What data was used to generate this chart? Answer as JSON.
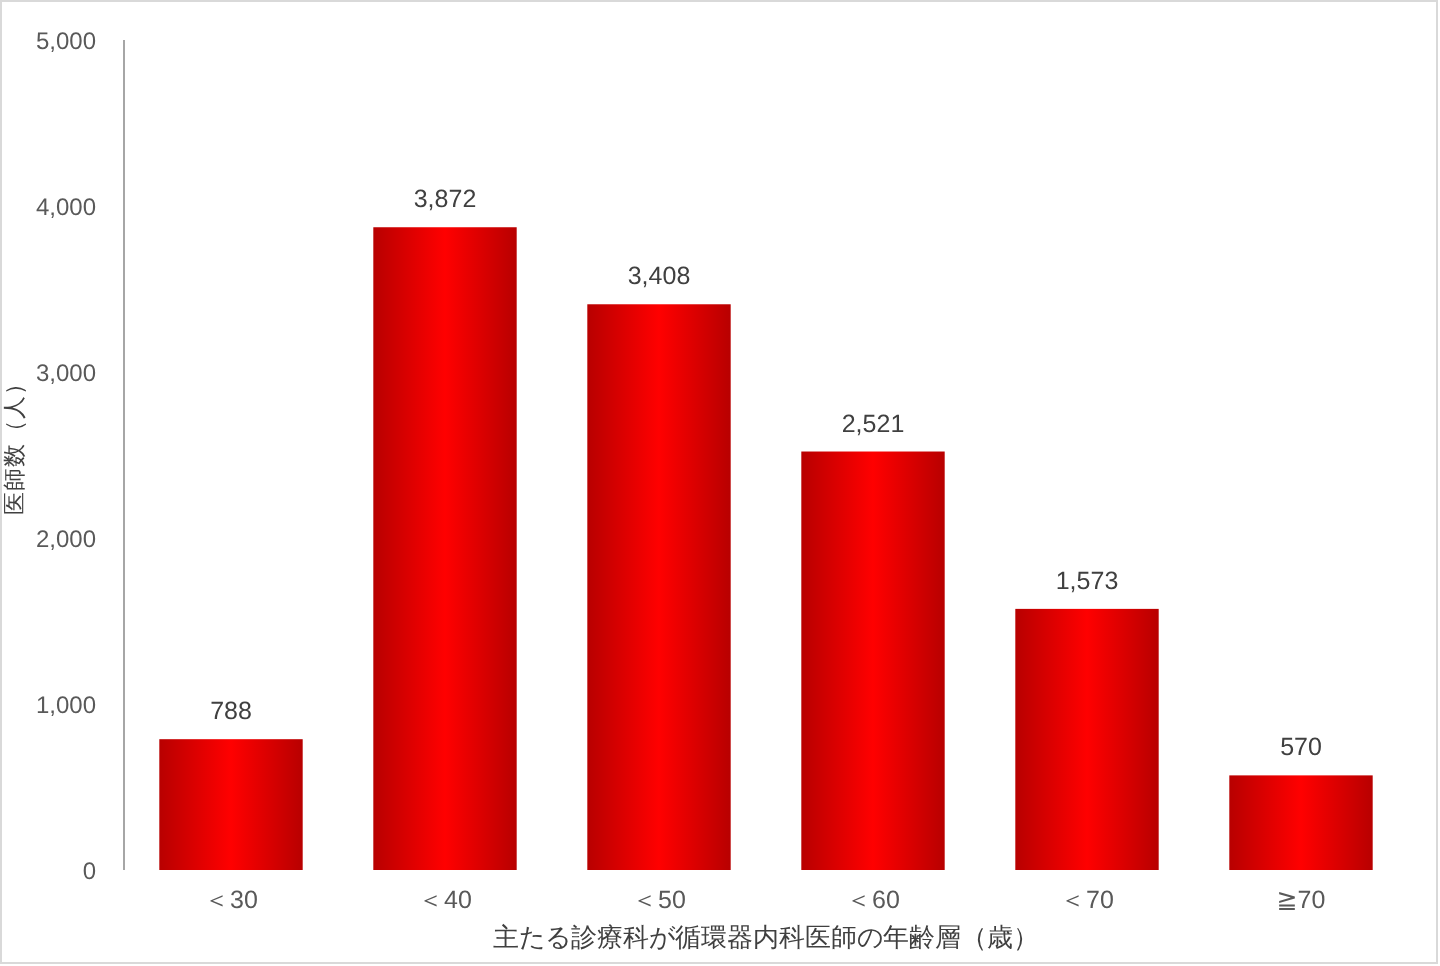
{
  "chart_data": {
    "type": "bar",
    "xlabel": "主たる診療科が循環器内科医師の年齢層（歳）",
    "ylabel": "医師数（人）",
    "categories": [
      "＜30",
      "＜40",
      "＜50",
      "＜60",
      "＜70",
      "≧70"
    ],
    "values": [
      788,
      3872,
      3408,
      2521,
      1573,
      570
    ],
    "value_labels": [
      "788",
      "3,872",
      "3,408",
      "2,521",
      "1,573",
      "570"
    ],
    "color": "#ff0000",
    "ylim": [
      0,
      5000
    ],
    "yticks": [
      0,
      {
        "value": 1000,
        "label": "1,000"
      },
      {
        "value": 2000,
        "label": "2,000"
      },
      {
        "value": 3000,
        "label": "3,000"
      },
      {
        "value": 4000,
        "label": "4,000"
      },
      {
        "value": 5000,
        "label": "5,000"
      }
    ]
  }
}
